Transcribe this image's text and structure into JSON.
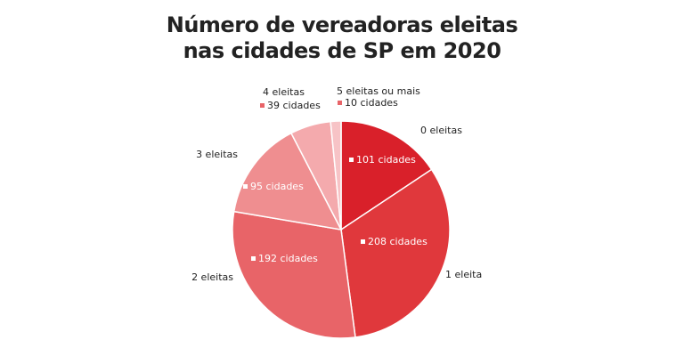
{
  "chart_data": {
    "type": "pie",
    "title": "Número de vereadoras eleitas nas cidades de SP em 2020",
    "categories": [
      "0 eleitas",
      "1 eleita",
      "2 eleitas",
      "3 eleitas",
      "4 eleitas",
      "5 eleitas ou mais"
    ],
    "values": [
      101,
      208,
      192,
      95,
      39,
      10
    ],
    "value_labels": [
      "101 cidades",
      "208 cidades",
      "192 cidades",
      "95 cidades",
      "39 cidades",
      "10 cidades"
    ],
    "colors": [
      "#d9202a",
      "#e0383c",
      "#e86468",
      "#ef8e90",
      "#f4aaad",
      "#f7c3c6"
    ]
  }
}
